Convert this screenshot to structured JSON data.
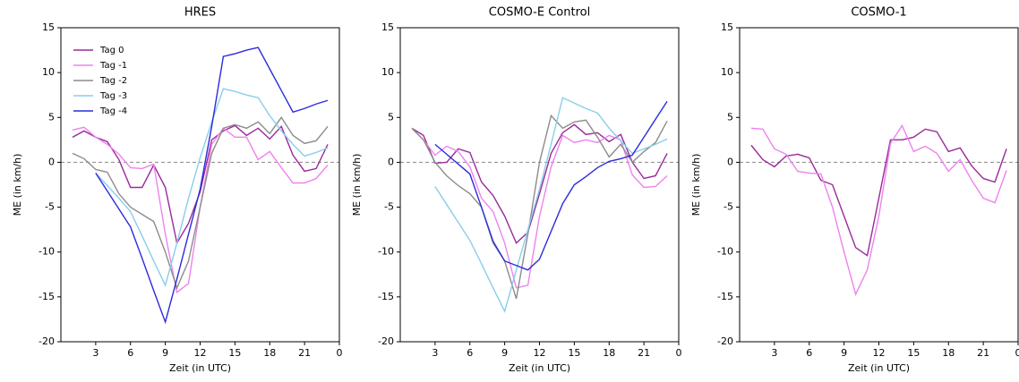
{
  "chart_data": [
    {
      "type": "line",
      "title": "HRES",
      "xlabel": "Zeit (in UTC)",
      "ylabel": "ME (in km/h)",
      "x": [
        1,
        2,
        3,
        4,
        5,
        6,
        7,
        8,
        9,
        10,
        11,
        12,
        13,
        14,
        15,
        16,
        17,
        18,
        19,
        20,
        21,
        22,
        23
      ],
      "xlim": [
        0,
        24
      ],
      "xticks": [
        3,
        6,
        9,
        12,
        15,
        18,
        21,
        {
          "value": 24,
          "label": "0"
        }
      ],
      "ylim": [
        -20,
        15
      ],
      "yticks": [
        -20,
        -15,
        -10,
        -5,
        0,
        5,
        10,
        15
      ],
      "reference_line": 0,
      "legend": "upper left",
      "series": [
        {
          "name": "Tag 0",
          "color": "#9a2a9a",
          "values": [
            2.8,
            3.5,
            2.8,
            2.3,
            0.3,
            -2.8,
            -2.8,
            -0.3,
            -2.8,
            -9,
            -6.8,
            -3.3,
            2.5,
            3.5,
            4.1,
            3,
            3.8,
            2.6,
            4,
            0.8,
            -1,
            -0.7,
            2
          ]
        },
        {
          "name": "Tag -1",
          "color": "#ee82ee",
          "values": [
            3.6,
            3.9,
            2.8,
            2,
            0.9,
            -0.6,
            -0.7,
            -0.2,
            -8,
            -14.5,
            -13.5,
            -5,
            2,
            3.8,
            2.8,
            2.8,
            0.3,
            1.2,
            -0.6,
            -2.3,
            -2.3,
            -1.8,
            -0.3
          ]
        },
        {
          "name": "Tag -2",
          "color": "#8c8c8c",
          "values": [
            1,
            0.4,
            -0.8,
            -1.1,
            -3.5,
            -5,
            -5.8,
            -6.6,
            -10,
            -14,
            -11,
            -5,
            1,
            3.8,
            4.2,
            3.8,
            4.5,
            3.2,
            5,
            3,
            2.1,
            2.4,
            4
          ]
        },
        {
          "name": "Tag -3",
          "color": "#87ceeb",
          "values": [
            null,
            null,
            -1.2,
            -2.6,
            -4,
            -5.5,
            -8.2,
            -11,
            -13.7,
            -9,
            -4,
            0.5,
            4.5,
            8.2,
            7.9,
            7.5,
            7.2,
            5.2,
            3.5,
            2,
            0.7,
            1.1,
            1.6
          ]
        },
        {
          "name": "Tag -4",
          "color": "#2b2bdd",
          "values": [
            null,
            null,
            -1.2,
            -3.2,
            -5.2,
            -7.2,
            -10.7,
            -14.3,
            -17.8,
            -13,
            -8,
            -3,
            4,
            11.8,
            12.1,
            12.5,
            12.8,
            10.4,
            8,
            5.6,
            6,
            6.5,
            6.9
          ]
        }
      ]
    },
    {
      "type": "line",
      "title": "COSMO-E Control",
      "xlabel": "Zeit (in UTC)",
      "ylabel": "ME (in km/h)",
      "x": [
        1,
        2,
        3,
        4,
        5,
        6,
        7,
        8,
        9,
        10,
        11,
        12,
        13,
        14,
        15,
        16,
        17,
        18,
        19,
        20,
        21,
        22,
        23
      ],
      "xlim": [
        0,
        24
      ],
      "xticks": [
        3,
        6,
        9,
        12,
        15,
        18,
        21,
        {
          "value": 24,
          "label": "0"
        }
      ],
      "ylim": [
        -20,
        15
      ],
      "yticks": [
        -20,
        -15,
        -10,
        -5,
        0,
        5,
        10,
        15
      ],
      "reference_line": 0,
      "series": [
        {
          "name": "Tag 0",
          "color": "#9a2a9a",
          "values": [
            3.8,
            3,
            -0.1,
            0,
            1.5,
            1.1,
            -2.2,
            -3.7,
            -6,
            -9,
            -7.8,
            -3.5,
            1,
            3.3,
            4.2,
            3.1,
            3.3,
            2.3,
            3.1,
            0,
            -1.8,
            -1.5,
            1
          ]
        },
        {
          "name": "Tag -1",
          "color": "#ee82ee",
          "values": [
            3.8,
            2.5,
            0.8,
            1.8,
            1.2,
            -0.5,
            -4,
            -5.5,
            -9,
            -14,
            -13.7,
            -6,
            -0.5,
            3,
            2.2,
            2.5,
            2.2,
            3,
            2.5,
            -1.4,
            -2.8,
            -2.7,
            -1.5
          ]
        },
        {
          "name": "Tag -2",
          "color": "#8c8c8c",
          "values": [
            3.8,
            2.5,
            0,
            -1.5,
            -2.6,
            -3.5,
            -5,
            -9,
            -11,
            -15.2,
            -8,
            0,
            5.2,
            3.8,
            4.5,
            4.7,
            2.8,
            0.6,
            2,
            0,
            1.2,
            2.2,
            4.6
          ]
        },
        {
          "name": "Tag -3",
          "color": "#87ceeb",
          "values": [
            null,
            null,
            -2.7,
            -4.7,
            -6.7,
            -8.7,
            -11.3,
            -14,
            -16.6,
            -12,
            -7.5,
            -3,
            2,
            7.2,
            6.6,
            6,
            5.5,
            3.8,
            2.4,
            1,
            1.5,
            2,
            2.6
          ]
        },
        {
          "name": "Tag -4",
          "color": "#2b2bdd",
          "values": [
            null,
            null,
            2,
            0.9,
            -0.2,
            -1.3,
            -5,
            -8.8,
            -11,
            -11.5,
            -12,
            -10.8,
            -7.7,
            -4.6,
            -2.5,
            -1.6,
            -0.6,
            0.1,
            0.4,
            0.8,
            2.8,
            4.8,
            6.8
          ]
        }
      ]
    },
    {
      "type": "line",
      "title": "COSMO-1",
      "xlabel": "Zeit (in UTC)",
      "ylabel": "ME (in km/h)",
      "x": [
        1,
        2,
        3,
        4,
        5,
        6,
        7,
        8,
        9,
        10,
        11,
        12,
        13,
        14,
        15,
        16,
        17,
        18,
        19,
        20,
        21,
        22,
        23
      ],
      "xlim": [
        0,
        24
      ],
      "xticks": [
        3,
        6,
        9,
        12,
        15,
        18,
        21,
        {
          "value": 24,
          "label": "0"
        }
      ],
      "ylim": [
        -20,
        15
      ],
      "yticks": [
        -20,
        -15,
        -10,
        -5,
        0,
        5,
        10,
        15
      ],
      "reference_line": 0,
      "series": [
        {
          "name": "Tag 0",
          "color": "#9a2a9a",
          "values": [
            1.9,
            0.3,
            -0.5,
            0.7,
            0.9,
            0.5,
            -2,
            -2.5,
            -6,
            -9.5,
            -10.4,
            -4,
            2.5,
            2.5,
            2.8,
            3.7,
            3.4,
            1.2,
            1.6,
            -0.4,
            -1.8,
            -2.2,
            1.5
          ]
        },
        {
          "name": "Tag -1",
          "color": "#ee82ee",
          "values": [
            3.8,
            3.7,
            1.5,
            0.9,
            -1,
            -1.2,
            -1.3,
            -5,
            -10,
            -14.7,
            -12,
            -6,
            2.1,
            4.1,
            1.2,
            1.8,
            1,
            -1,
            0.3,
            -2,
            -4,
            -4.5,
            -0.9
          ]
        }
      ]
    }
  ]
}
